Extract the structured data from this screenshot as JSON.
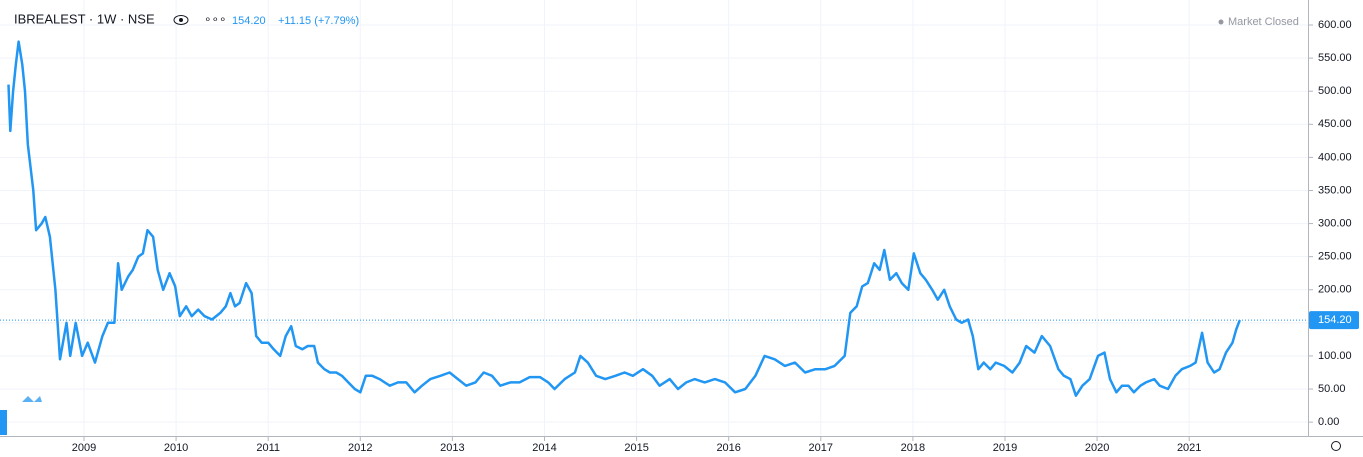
{
  "header": {
    "symbol": "IBREALEST · 1W · NSE",
    "price": "154.20",
    "change": "+11.15 (+7.79%)",
    "status": "Market Closed"
  },
  "chart_data": {
    "type": "line",
    "color": "#2196f3",
    "grid": true,
    "price_line": {
      "value": 154.2,
      "label": "154.20"
    },
    "xlim": [
      2008.175,
      2022.29
    ],
    "xticks": [
      2009,
      2010,
      2011,
      2012,
      2013,
      2014,
      2015,
      2016,
      2017,
      2018,
      2019,
      2020,
      2021
    ],
    "ylim": [
      -27,
      625.7
    ],
    "yticks": [
      {
        "value": 0,
        "label": "0.00"
      },
      {
        "value": 50,
        "label": "50.00"
      },
      {
        "value": 100,
        "label": "100.00"
      },
      {
        "value": 150,
        "label": "150.00"
      },
      {
        "value": 200,
        "label": "200.00"
      },
      {
        "value": 250,
        "label": "250.00"
      },
      {
        "value": 300,
        "label": "300.00"
      },
      {
        "value": 350,
        "label": "350.00"
      },
      {
        "value": 400,
        "label": "400.00"
      },
      {
        "value": 450,
        "label": "450.00"
      },
      {
        "value": 500,
        "label": "500.00"
      },
      {
        "value": 550,
        "label": "550.00"
      },
      {
        "value": 600,
        "label": "600.00"
      }
    ],
    "x": [
      2008.18,
      2008.2,
      2008.23,
      2008.26,
      2008.29,
      2008.33,
      2008.36,
      2008.39,
      2008.45,
      2008.48,
      2008.54,
      2008.58,
      2008.63,
      2008.69,
      2008.74,
      2008.81,
      2008.85,
      2008.91,
      2008.98,
      2009.04,
      2009.12,
      2009.2,
      2009.26,
      2009.33,
      2009.37,
      2009.41,
      2009.48,
      2009.53,
      2009.59,
      2009.64,
      2009.69,
      2009.75,
      2009.8,
      2009.86,
      2009.93,
      2009.99,
      2010.04,
      2010.11,
      2010.17,
      2010.24,
      2010.31,
      2010.39,
      2010.48,
      2010.54,
      2010.59,
      2010.64,
      2010.69,
      2010.76,
      2010.82,
      2010.87,
      2010.93,
      2011.0,
      2011.06,
      2011.13,
      2011.19,
      2011.25,
      2011.3,
      2011.37,
      2011.43,
      2011.5,
      2011.54,
      2011.61,
      2011.67,
      2011.74,
      2011.8,
      2011.87,
      2011.94,
      2012.0,
      2012.06,
      2012.13,
      2012.21,
      2012.32,
      2012.41,
      2012.5,
      2012.59,
      2012.67,
      2012.76,
      2012.87,
      2012.97,
      2013.06,
      2013.15,
      2013.25,
      2013.34,
      2013.43,
      2013.52,
      2013.63,
      2013.73,
      2013.84,
      2013.95,
      2014.04,
      2014.11,
      2014.22,
      2014.33,
      2014.39,
      2014.47,
      2014.56,
      2014.66,
      2014.77,
      2014.87,
      2014.96,
      2015.07,
      2015.17,
      2015.25,
      2015.36,
      2015.45,
      2015.54,
      2015.63,
      2015.74,
      2015.85,
      2015.96,
      2016.07,
      2016.18,
      2016.29,
      2016.39,
      2016.5,
      2016.61,
      2016.72,
      2016.83,
      2016.94,
      2017.05,
      2017.15,
      2017.26,
      2017.32,
      2017.39,
      2017.45,
      2017.51,
      2017.58,
      2017.64,
      2017.69,
      2017.75,
      2017.82,
      2017.88,
      2017.95,
      2018.01,
      2018.08,
      2018.14,
      2018.21,
      2018.27,
      2018.34,
      2018.4,
      2018.47,
      2018.53,
      2018.6,
      2018.65,
      2018.71,
      2018.77,
      2018.84,
      2018.9,
      2018.99,
      2019.08,
      2019.16,
      2019.23,
      2019.32,
      2019.4,
      2019.49,
      2019.58,
      2019.64,
      2019.71,
      2019.77,
      2019.84,
      2019.92,
      2020.01,
      2020.08,
      2020.14,
      2020.21,
      2020.27,
      2020.34,
      2020.4,
      2020.47,
      2020.53,
      2020.62,
      2020.68,
      2020.77,
      2020.85,
      2020.92,
      2021.01,
      2021.07,
      2021.14,
      2021.2,
      2021.27,
      2021.33,
      2021.4,
      2021.47,
      2021.51,
      2021.55
    ],
    "values": [
      510,
      440,
      500,
      540,
      575,
      540,
      500,
      420,
      350,
      290,
      300,
      310,
      280,
      200,
      95,
      150,
      100,
      150,
      100,
      120,
      90,
      130,
      150,
      150,
      240,
      200,
      220,
      230,
      250,
      255,
      290,
      280,
      230,
      200,
      225,
      205,
      160,
      175,
      160,
      170,
      160,
      155,
      165,
      175,
      195,
      175,
      180,
      210,
      195,
      130,
      120,
      120,
      110,
      100,
      130,
      145,
      115,
      110,
      115,
      115,
      90,
      80,
      75,
      75,
      70,
      60,
      50,
      45,
      70,
      70,
      65,
      55,
      60,
      60,
      45,
      55,
      65,
      70,
      75,
      65,
      55,
      60,
      75,
      70,
      55,
      60,
      60,
      68,
      68,
      60,
      50,
      65,
      75,
      100,
      90,
      70,
      65,
      70,
      75,
      70,
      80,
      70,
      55,
      65,
      50,
      60,
      65,
      60,
      65,
      60,
      45,
      50,
      70,
      100,
      95,
      85,
      90,
      75,
      80,
      80,
      85,
      100,
      165,
      175,
      205,
      210,
      240,
      230,
      260,
      215,
      225,
      210,
      200,
      255,
      225,
      215,
      200,
      185,
      200,
      175,
      155,
      150,
      155,
      130,
      80,
      90,
      80,
      90,
      85,
      75,
      90,
      115,
      105,
      130,
      115,
      80,
      70,
      65,
      40,
      55,
      65,
      100,
      105,
      65,
      45,
      55,
      55,
      45,
      55,
      60,
      65,
      55,
      50,
      70,
      80,
      85,
      90,
      135,
      90,
      75,
      80,
      105,
      120,
      140,
      154.2
    ]
  }
}
